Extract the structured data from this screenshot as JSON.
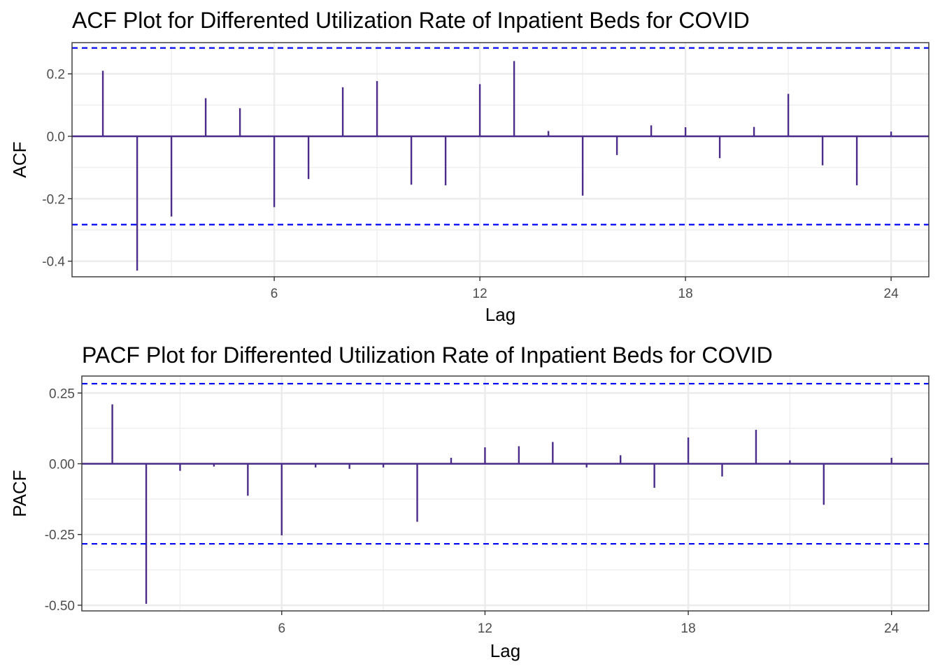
{
  "chart_data": [
    {
      "type": "bar",
      "title": "ACF Plot for Differented Utilization Rate of Inpatient Beds for COVID",
      "xlabel": "Lag",
      "ylabel": "ACF",
      "xticks": [
        "6",
        "12",
        "18",
        "24"
      ],
      "yticks": [
        "-0.4",
        "-0.2",
        "0.0",
        "0.2"
      ],
      "ytick_values": [
        -0.4,
        -0.2,
        0.0,
        0.2
      ],
      "xlim": [
        0.1,
        25.1
      ],
      "ylim": [
        -0.45,
        0.3
      ],
      "confidence_band": 0.283,
      "lags": [
        1,
        2,
        3,
        4,
        5,
        6,
        7,
        8,
        9,
        10,
        11,
        12,
        13,
        14,
        15,
        16,
        17,
        18,
        19,
        20,
        21,
        22,
        23,
        24
      ],
      "values": [
        0.21,
        -0.43,
        -0.257,
        0.122,
        0.09,
        -0.227,
        -0.137,
        0.157,
        0.177,
        -0.155,
        -0.157,
        0.167,
        0.241,
        0.017,
        -0.19,
        -0.06,
        0.035,
        0.029,
        -0.07,
        0.03,
        0.136,
        -0.093,
        -0.157,
        0.015
      ],
      "grid": true,
      "colors": {
        "bars": "#4b2c8a",
        "ci": "#0000ff",
        "grid": "#ebebeb"
      }
    },
    {
      "type": "bar",
      "title": "PACF Plot for Differented Utilization Rate of Inpatient Beds for COVID",
      "xlabel": "Lag",
      "ylabel": "PACF",
      "xticks": [
        "6",
        "12",
        "18",
        "24"
      ],
      "yticks": [
        "-0.50",
        "-0.25",
        "0.00",
        "0.25"
      ],
      "ytick_values": [
        -0.5,
        -0.25,
        0.0,
        0.25
      ],
      "xlim": [
        0.1,
        25.1
      ],
      "ylim": [
        -0.52,
        0.31
      ],
      "confidence_band": 0.283,
      "lags": [
        1,
        2,
        3,
        4,
        5,
        6,
        7,
        8,
        9,
        10,
        11,
        12,
        13,
        14,
        15,
        16,
        17,
        18,
        19,
        20,
        21,
        22,
        23,
        24
      ],
      "values": [
        0.21,
        -0.495,
        -0.025,
        -0.01,
        -0.113,
        -0.253,
        -0.013,
        -0.018,
        -0.013,
        -0.205,
        0.021,
        0.058,
        0.062,
        0.077,
        -0.013,
        0.03,
        -0.085,
        0.093,
        -0.045,
        0.12,
        0.012,
        -0.145,
        0.0,
        0.021
      ],
      "grid": true,
      "colors": {
        "bars": "#4b2c8a",
        "ci": "#0000ff",
        "grid": "#ebebeb"
      }
    }
  ]
}
